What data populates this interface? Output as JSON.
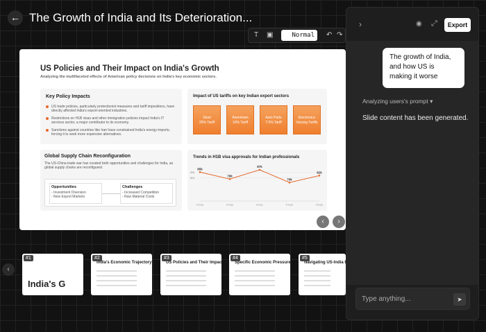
{
  "header": {
    "title": "The Growth of India and Its Deterioration..."
  },
  "toolbar": {
    "mode": "Normal"
  },
  "slide": {
    "title": "US Policies and Their Impact on India's Growth",
    "subtitle": "Analyzing the multifaceted effects of American policy decisions on India's key economic sectors.",
    "policy": {
      "heading": "Key Policy Impacts",
      "bullets": [
        "US trade policies, particularly protectionist measures and tariff impositions, have directly affected India's export-oriented industries.",
        "Restrictions on H1B visas and other immigration policies impact India's IT services sector, a major contributor to its economy.",
        "Sanctions against countries like Iran have constrained India's energy imports, forcing it to seek more expensive alternatives."
      ]
    },
    "tariffs": {
      "heading": "Impact of US tariffs on key Indian export sectors",
      "items": [
        {
          "sector": "Steel",
          "tariff": "25% Tariff"
        },
        {
          "sector": "Aluminium",
          "tariff": "10% Tariff"
        },
        {
          "sector": "Auto Parts",
          "tariff": "7.5% Tariff"
        },
        {
          "sector": "Electronics",
          "tariff": "Varying Tariffs"
        }
      ]
    },
    "supply": {
      "heading": "Global Supply Chain Reconfiguration",
      "text": "The US-China trade war has created both opportunities and challenges for India, as global supply chains are reconfigured.",
      "opportunities": {
        "heading": "Opportunities",
        "items": [
          "- Investment Diversion",
          "- New Export Markets"
        ]
      },
      "challenges": {
        "heading": "Challenges",
        "items": [
          "- Increased Competition",
          "- Raw Material Costs"
        ]
      }
    }
  },
  "chart_data": {
    "type": "line",
    "title": "Trends in H1B visa approvals for Indian professionals",
    "categories": [
      "FY19",
      "FY20",
      "FY21",
      "FY22",
      "FY23"
    ],
    "series": [
      {
        "color": "#e8682a",
        "values": [
          85000,
          79000,
          87000,
          76000,
          82000
        ],
        "value_labels": [
          "85k",
          "79k",
          "87k",
          "76k",
          "82k"
        ]
      }
    ],
    "ylim": [
      60000,
      90000
    ],
    "yticks": [
      {
        "value": 85000,
        "label": "85k"
      },
      {
        "value": 80000,
        "label": "80k"
      }
    ],
    "grid": true
  },
  "thumbnails": [
    {
      "number": "#1",
      "title": "India's G"
    },
    {
      "number": "#2",
      "title": "India's Economic Trajectory"
    },
    {
      "number": "#3",
      "title": "US Policies and Their Impact on"
    },
    {
      "number": "#4",
      "title": "Specific Economic Pressures fro"
    },
    {
      "number": "#5",
      "title": "Navigating US-India Eco"
    }
  ],
  "chat": {
    "export": "Export",
    "message": "The growth of India, and how US is making it worse",
    "status": "Analyzing users's prompt",
    "reply": "Slide content has been generated.",
    "input_placeholder": "Type anything..."
  }
}
